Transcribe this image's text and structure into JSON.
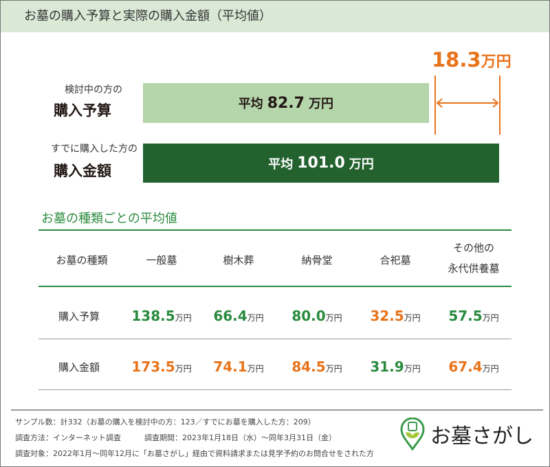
{
  "title": "お墓の購入予算と実際の購入金額（平均値）",
  "chart_data": {
    "type": "bar",
    "orientation": "horizontal",
    "categories": [
      {
        "small": "検討中の方の",
        "big": "購入予算"
      },
      {
        "small": "すでに購入した方の",
        "big": "購入金額"
      }
    ],
    "values": [
      82.7,
      101.0
    ],
    "value_labels": [
      {
        "pre": "平均",
        "num": "82.7",
        "unit": "万円"
      },
      {
        "pre": "平均",
        "num": "101.0",
        "unit": "万円"
      }
    ],
    "difference": {
      "num": "18.3",
      "unit": "万円"
    },
    "colors": [
      "#b5d5ab",
      "#23622f",
      "#e8731a"
    ]
  },
  "subtitle": "お墓の種類ごとの平均値",
  "table": {
    "headers": [
      "お墓の種類",
      "一般墓",
      "樹木葬",
      "納骨堂",
      "合祀墓",
      "その他の",
      "永代供養墓"
    ],
    "unit": "万円",
    "rows": [
      {
        "label": "購入予算",
        "values": [
          {
            "v": "138.5",
            "c": "#2a8a3e"
          },
          {
            "v": "66.4",
            "c": "#2a8a3e"
          },
          {
            "v": "80.0",
            "c": "#2a8a3e"
          },
          {
            "v": "32.5",
            "c": "#e8731a"
          },
          {
            "v": "57.5",
            "c": "#2a8a3e"
          }
        ]
      },
      {
        "label": "購入金額",
        "values": [
          {
            "v": "173.5",
            "c": "#e8731a"
          },
          {
            "v": "74.1",
            "c": "#e8731a"
          },
          {
            "v": "84.5",
            "c": "#e8731a"
          },
          {
            "v": "31.9",
            "c": "#2a8a3e"
          },
          {
            "v": "67.4",
            "c": "#e8731a"
          }
        ]
      }
    ]
  },
  "footer": [
    "サンプル数：計332（お墓の購入を検討中の方：123／すでにお墓を購入した方：209）",
    "調査方法：インターネット調査",
    "調査期間：2023年1月18日（水）～同年3月31日（金）",
    "調査対象：2022年1月～同年12月に「お墓さがし」経由で資料請求または見学予約のお問合せをされた方"
  ],
  "logo": "お墓さがし"
}
